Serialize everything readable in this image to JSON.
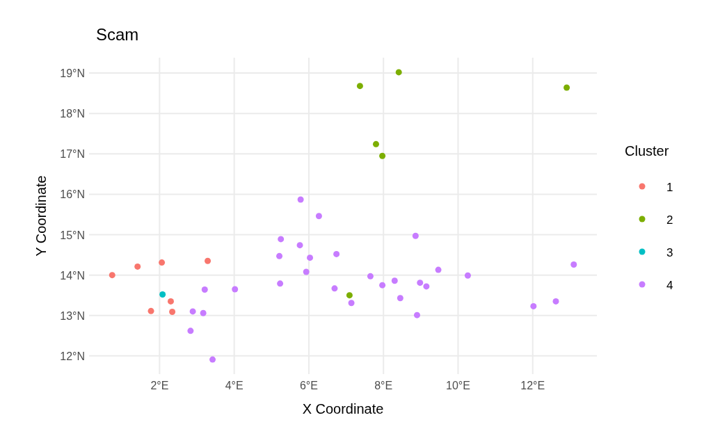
{
  "chart_data": {
    "type": "scatter",
    "title": "Scam",
    "xlabel": "X Coordinate",
    "ylabel": "Y Coordinate",
    "legend_title": "Cluster",
    "legend": "right",
    "grid": true,
    "marker": "circle",
    "xlim": [
      0.11,
      13.72
    ],
    "ylim": [
      11.55,
      19.38
    ],
    "xticks": [
      {
        "value": 2,
        "label": "2°E"
      },
      {
        "value": 4,
        "label": "4°E"
      },
      {
        "value": 6,
        "label": "6°E"
      },
      {
        "value": 8,
        "label": "8°E"
      },
      {
        "value": 10,
        "label": "10°E"
      },
      {
        "value": 12,
        "label": "12°E"
      }
    ],
    "yticks": [
      {
        "value": 12,
        "label": "12°N"
      },
      {
        "value": 13,
        "label": "13°N"
      },
      {
        "value": 14,
        "label": "14°N"
      },
      {
        "value": 15,
        "label": "15°N"
      },
      {
        "value": 16,
        "label": "16°N"
      },
      {
        "value": 17,
        "label": "17°N"
      },
      {
        "value": 18,
        "label": "18°N"
      },
      {
        "value": 19,
        "label": "19°N"
      }
    ],
    "series": [
      {
        "name": "1",
        "color": "#f8766d",
        "x": [
          0.73,
          1.41,
          2.06,
          3.29,
          1.77,
          2.3,
          2.34
        ],
        "values": [
          14.0,
          14.21,
          14.31,
          14.35,
          13.11,
          13.35,
          13.09
        ]
      },
      {
        "name": "2",
        "color": "#7cae00",
        "x": [
          7.37,
          8.41,
          12.91,
          7.8,
          7.97,
          7.09
        ],
        "values": [
          18.68,
          19.02,
          18.64,
          17.24,
          16.95,
          13.5
        ]
      },
      {
        "name": "3",
        "color": "#00bfc4",
        "x": [
          2.08
        ],
        "values": [
          13.52
        ]
      },
      {
        "name": "4",
        "color": "#c77cff",
        "x": [
          2.83,
          2.89,
          3.17,
          3.21,
          3.42,
          4.02,
          5.78,
          6.27,
          5.25,
          5.76,
          5.21,
          6.03,
          6.74,
          5.93,
          5.23,
          6.69,
          7.14,
          7.65,
          7.97,
          8.3,
          8.45,
          8.9,
          8.86,
          8.98,
          9.15,
          9.47,
          10.26,
          12.02,
          12.62,
          13.1
        ],
        "values": [
          12.62,
          13.1,
          13.06,
          13.64,
          11.91,
          13.65,
          15.87,
          15.46,
          14.89,
          14.74,
          14.47,
          14.43,
          14.52,
          14.08,
          13.79,
          13.67,
          13.31,
          13.97,
          13.75,
          13.86,
          13.43,
          13.01,
          14.97,
          13.81,
          13.72,
          14.13,
          13.99,
          13.23,
          13.35,
          14.26
        ]
      }
    ]
  }
}
